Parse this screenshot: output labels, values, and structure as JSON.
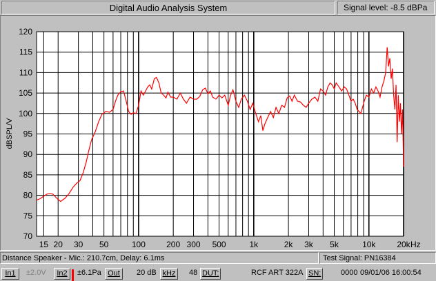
{
  "window": {
    "title": "Digital Audio Analysis System",
    "signal_level": "Signal level: -8.5 dBPa"
  },
  "info": {
    "left": "Distance Speaker - Mic.: 210.7cm, Delay: 6.1ms",
    "right": "Test Signal: PN16384"
  },
  "status": {
    "in1_label": "In1",
    "in1_value": "±2.0V",
    "in2_label": "In2",
    "in2_value": "±6.1Pa",
    "out_label": "Out",
    "range_value": "20 dB",
    "khz_label": "kHz",
    "rate_value": "48",
    "dut_label": "DUT:",
    "dut_value": "RCF ART 322A",
    "sn_label": "SN:",
    "sn_value": "0000",
    "date_time": "09/01/06  16:00:54",
    "accent_red": "#ff0000",
    "disabled_grey": "#808080"
  },
  "chart_data": {
    "type": "line",
    "title": "",
    "ylabel": "dBSPL/V",
    "xlabel": "Hz",
    "x_scale": "log",
    "xlim": [
      13,
      20000
    ],
    "ylim": [
      70,
      120
    ],
    "yticks": [
      70,
      75,
      80,
      85,
      90,
      95,
      100,
      105,
      110,
      115,
      120
    ],
    "xticks": [
      {
        "v": 15,
        "label": "15"
      },
      {
        "v": 20,
        "label": "20"
      },
      {
        "v": 30,
        "label": "30"
      },
      {
        "v": 50,
        "label": "50"
      },
      {
        "v": 100,
        "label": "100"
      },
      {
        "v": 200,
        "label": "200"
      },
      {
        "v": 300,
        "label": "300"
      },
      {
        "v": 500,
        "label": "500"
      },
      {
        "v": 1000,
        "label": "1k"
      },
      {
        "v": 2000,
        "label": "2k"
      },
      {
        "v": 3000,
        "label": "3k"
      },
      {
        "v": 5000,
        "label": "5k"
      },
      {
        "v": 10000,
        "label": "10k"
      },
      {
        "v": 20000,
        "label": "20k"
      }
    ],
    "grid": true,
    "line_color": "#ff0000",
    "series": [
      {
        "points": [
          [
            13,
            78.8
          ],
          [
            14,
            79.2
          ],
          [
            15,
            79.8
          ],
          [
            16,
            80.3
          ],
          [
            17,
            80.4
          ],
          [
            18,
            80.3
          ],
          [
            19,
            79.6
          ],
          [
            20,
            79.0
          ],
          [
            21,
            78.5
          ],
          [
            22,
            78.9
          ],
          [
            23,
            79.3
          ],
          [
            25,
            80.5
          ],
          [
            27,
            82.0
          ],
          [
            29,
            83.0
          ],
          [
            31,
            83.6
          ],
          [
            33,
            85.5
          ],
          [
            35,
            88.0
          ],
          [
            37,
            91.0
          ],
          [
            39,
            93.5
          ],
          [
            42,
            95.5
          ],
          [
            45,
            98.0
          ],
          [
            48,
            99.8
          ],
          [
            52,
            100.5
          ],
          [
            56,
            100.3
          ],
          [
            60,
            101.0
          ],
          [
            63,
            103.0
          ],
          [
            66,
            104.5
          ],
          [
            70,
            105.3
          ],
          [
            74,
            105.5
          ],
          [
            78,
            103.0
          ],
          [
            82,
            100.5
          ],
          [
            86,
            99.8
          ],
          [
            90,
            100.2
          ],
          [
            95,
            100.0
          ],
          [
            100,
            102.0
          ],
          [
            105,
            105.5
          ],
          [
            110,
            104.5
          ],
          [
            115,
            105.5
          ],
          [
            120,
            106.5
          ],
          [
            125,
            107.0
          ],
          [
            130,
            106.0
          ],
          [
            137,
            108.5
          ],
          [
            143,
            108.8
          ],
          [
            150,
            107.5
          ],
          [
            157,
            105.0
          ],
          [
            165,
            104.5
          ],
          [
            173,
            103.8
          ],
          [
            180,
            105.2
          ],
          [
            190,
            104.0
          ],
          [
            200,
            104.0
          ],
          [
            215,
            103.5
          ],
          [
            230,
            105.0
          ],
          [
            245,
            103.5
          ],
          [
            260,
            102.5
          ],
          [
            280,
            104.0
          ],
          [
            300,
            103.5
          ],
          [
            320,
            103.5
          ],
          [
            340,
            104.2
          ],
          [
            360,
            105.8
          ],
          [
            380,
            106.2
          ],
          [
            400,
            104.8
          ],
          [
            420,
            105.5
          ],
          [
            440,
            104.0
          ],
          [
            470,
            103.5
          ],
          [
            500,
            104.5
          ],
          [
            530,
            103.8
          ],
          [
            560,
            104.5
          ],
          [
            600,
            102.0
          ],
          [
            630,
            104.5
          ],
          [
            660,
            105.8
          ],
          [
            700,
            103.0
          ],
          [
            740,
            101.5
          ],
          [
            780,
            103.5
          ],
          [
            830,
            104.5
          ],
          [
            880,
            103.0
          ],
          [
            930,
            101.0
          ],
          [
            980,
            102.5
          ],
          [
            1040,
            100.0
          ],
          [
            1100,
            98.0
          ],
          [
            1150,
            99.5
          ],
          [
            1200,
            95.8
          ],
          [
            1250,
            97.5
          ],
          [
            1320,
            99.0
          ],
          [
            1400,
            100.5
          ],
          [
            1480,
            99.0
          ],
          [
            1560,
            101.5
          ],
          [
            1650,
            100.0
          ],
          [
            1750,
            102.0
          ],
          [
            1850,
            101.5
          ],
          [
            1950,
            103.8
          ],
          [
            2050,
            104.3
          ],
          [
            2150,
            103.0
          ],
          [
            2250,
            104.5
          ],
          [
            2400,
            103.0
          ],
          [
            2550,
            102.8
          ],
          [
            2700,
            102.0
          ],
          [
            2850,
            101.5
          ],
          [
            3000,
            102.5
          ],
          [
            3200,
            103.5
          ],
          [
            3400,
            104.0
          ],
          [
            3600,
            103.0
          ],
          [
            3800,
            106.0
          ],
          [
            4000,
            105.5
          ],
          [
            4200,
            104.5
          ],
          [
            4400,
            106.5
          ],
          [
            4600,
            107.5
          ],
          [
            4800,
            107.0
          ],
          [
            5000,
            106.0
          ],
          [
            5200,
            107.5
          ],
          [
            5500,
            106.5
          ],
          [
            5800,
            105.5
          ],
          [
            6100,
            106.5
          ],
          [
            6400,
            106.0
          ],
          [
            6700,
            104.5
          ],
          [
            7000,
            103.0
          ],
          [
            7300,
            103.5
          ],
          [
            7600,
            102.5
          ],
          [
            7900,
            101.0
          ],
          [
            8200,
            100.5
          ],
          [
            8500,
            100.0
          ],
          [
            8800,
            101.5
          ],
          [
            9100,
            103.0
          ],
          [
            9500,
            104.5
          ],
          [
            10000,
            104.0
          ],
          [
            10500,
            106.0
          ],
          [
            11000,
            105.0
          ],
          [
            11500,
            106.5
          ],
          [
            12000,
            105.5
          ],
          [
            12500,
            104.0
          ],
          [
            13000,
            106.5
          ],
          [
            13500,
            108.0
          ],
          [
            14000,
            110.0
          ],
          [
            14400,
            116.2
          ],
          [
            14800,
            111.5
          ],
          [
            15200,
            113.5
          ],
          [
            15600,
            108.5
          ],
          [
            16000,
            111.0
          ],
          [
            16400,
            104.5
          ],
          [
            16800,
            101.0
          ],
          [
            17200,
            107.0
          ],
          [
            17600,
            93.0
          ],
          [
            18000,
            104.5
          ],
          [
            18400,
            98.0
          ],
          [
            18800,
            102.5
          ],
          [
            19200,
            95.0
          ],
          [
            19600,
            101.0
          ],
          [
            20000,
            87.0
          ]
        ]
      }
    ]
  }
}
